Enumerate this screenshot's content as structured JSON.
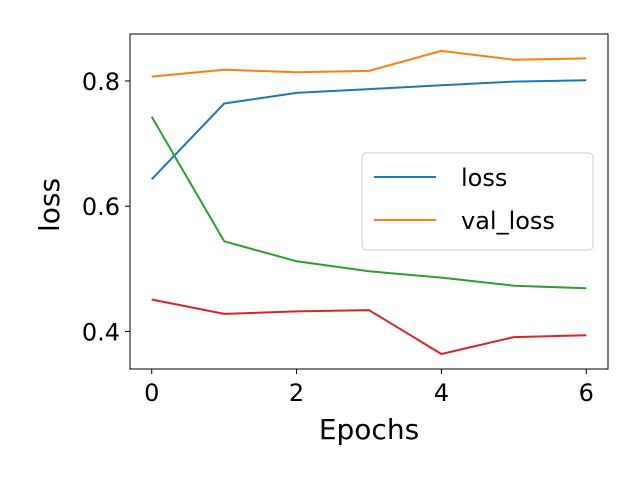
{
  "chart_data": {
    "type": "line",
    "title": "",
    "xlabel": "Epochs",
    "ylabel": "loss",
    "xlim": [
      -0.3,
      6.3
    ],
    "ylim": [
      0.34,
      0.875
    ],
    "xticks": [
      0,
      2,
      4,
      6
    ],
    "xtick_labels": [
      "0",
      "2",
      "4",
      "6"
    ],
    "yticks": [
      0.4,
      0.6,
      0.8
    ],
    "ytick_labels": [
      "0.4",
      "0.6",
      "0.8"
    ],
    "grid": false,
    "legend_position": "center-right",
    "x": [
      0,
      1,
      2,
      3,
      4,
      5,
      6
    ],
    "series": [
      {
        "name": "loss",
        "color": "#1f77b4",
        "in_legend": true,
        "values": [
          0.643,
          0.764,
          0.781,
          0.787,
          0.793,
          0.799,
          0.801
        ]
      },
      {
        "name": "val_loss",
        "color": "#ff7f0e",
        "in_legend": true,
        "values": [
          0.807,
          0.818,
          0.814,
          0.816,
          0.848,
          0.834,
          0.836
        ]
      },
      {
        "name": "",
        "color": "#2ca02c",
        "in_legend": false,
        "values": [
          0.743,
          0.544,
          0.512,
          0.496,
          0.486,
          0.473,
          0.469
        ]
      },
      {
        "name": "",
        "color": "#d62728",
        "in_legend": false,
        "values": [
          0.451,
          0.428,
          0.432,
          0.434,
          0.364,
          0.391,
          0.394
        ]
      }
    ]
  }
}
